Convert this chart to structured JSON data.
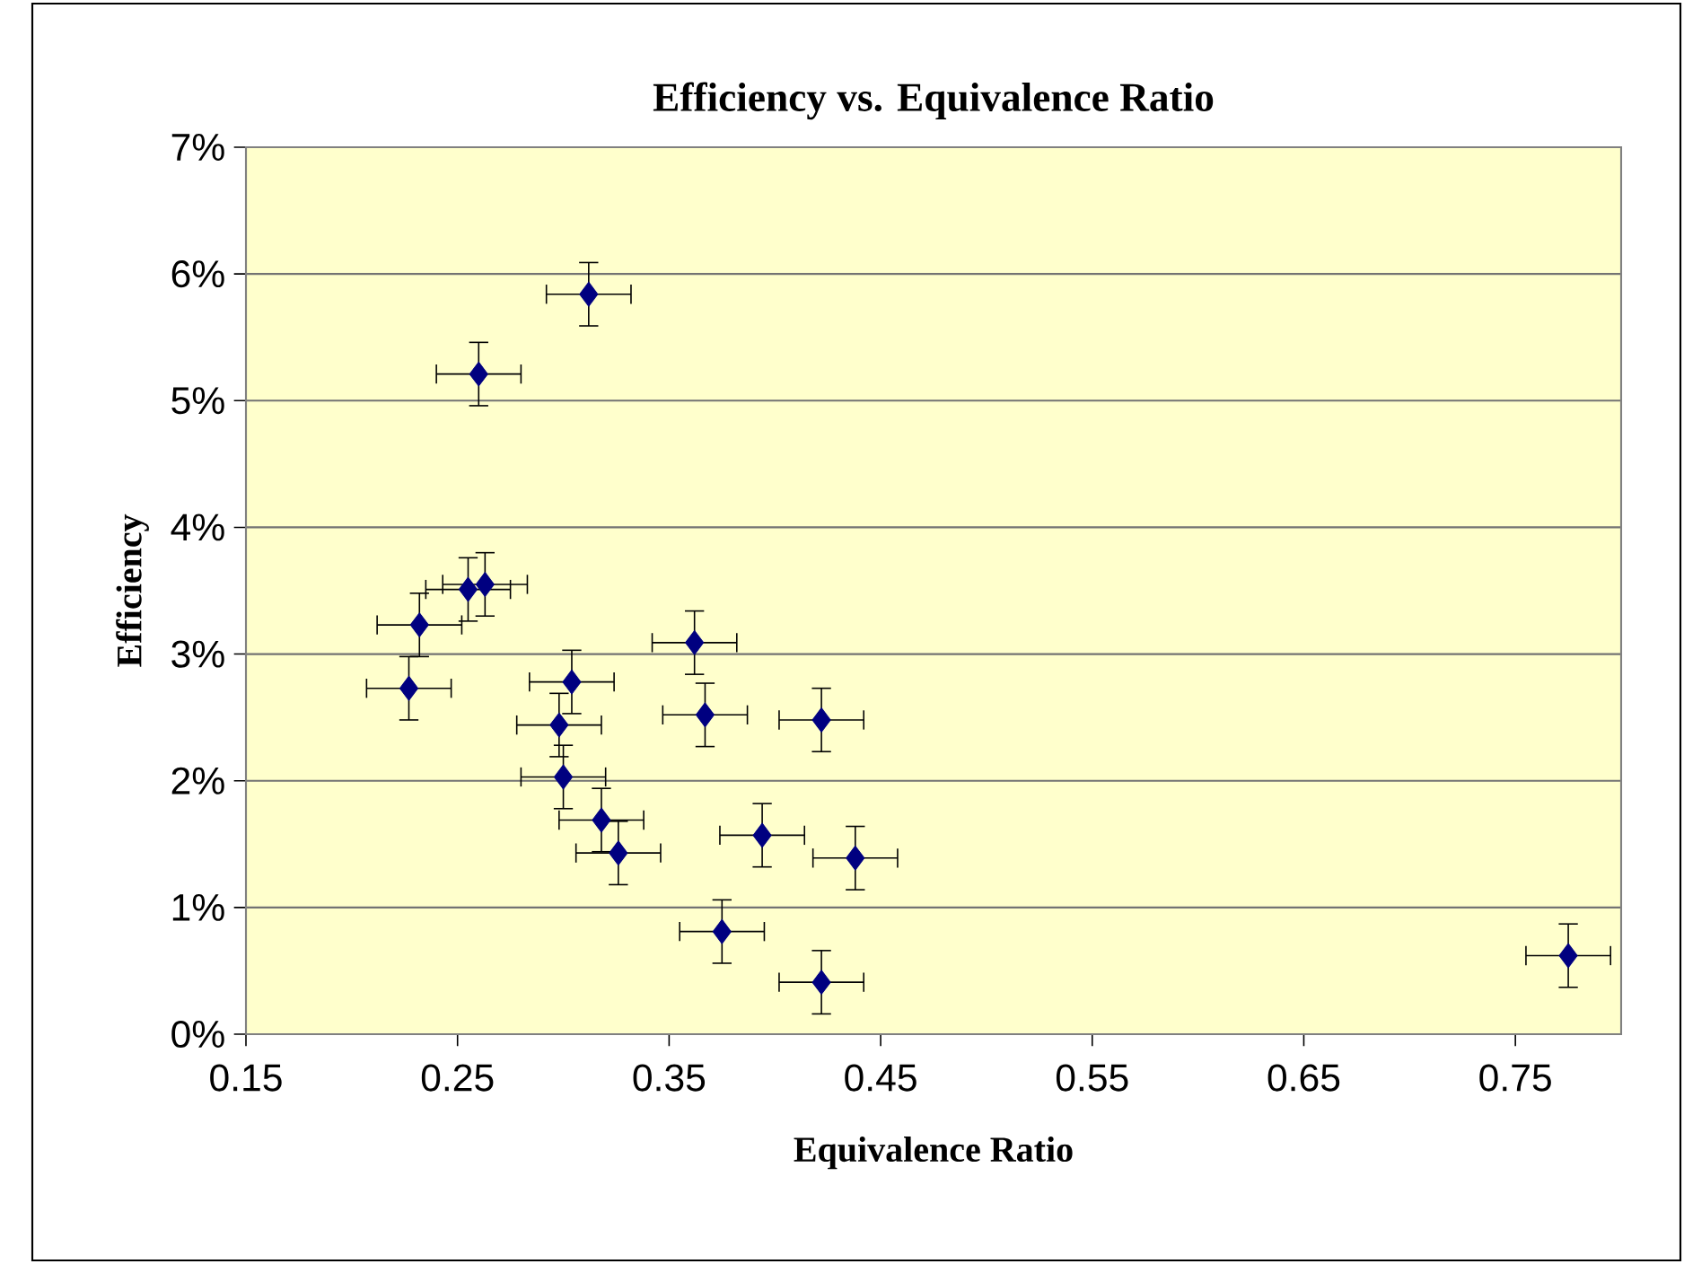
{
  "chart_data": {
    "type": "scatter",
    "title": "Efficiency vs. Equivalence Ratio",
    "xlabel": "Equivalence Ratio",
    "ylabel": "Efficiency",
    "x": [
      0.312,
      0.26,
      0.255,
      0.263,
      0.232,
      0.227,
      0.304,
      0.362,
      0.298,
      0.367,
      0.422,
      0.3,
      0.318,
      0.326,
      0.394,
      0.438,
      0.375,
      0.422,
      0.775
    ],
    "values": [
      5.84,
      5.21,
      3.51,
      3.55,
      3.23,
      2.73,
      2.78,
      3.09,
      2.44,
      2.52,
      2.48,
      2.03,
      1.69,
      1.43,
      1.57,
      1.39,
      0.81,
      0.41,
      0.62
    ],
    "errors": [
      0.25,
      0.25,
      0.25,
      0.25,
      0.25,
      0.25,
      0.25,
      0.25,
      0.25,
      0.25,
      0.25,
      0.25,
      0.25,
      0.25,
      0.25,
      0.25,
      0.25,
      0.25,
      0.25
    ],
    "xerrors": [
      0.02,
      0.02,
      0.02,
      0.02,
      0.02,
      0.02,
      0.02,
      0.02,
      0.02,
      0.02,
      0.02,
      0.02,
      0.02,
      0.02,
      0.02,
      0.02,
      0.02,
      0.02,
      0.02
    ],
    "color": "#000080",
    "marker": "diamond",
    "grid": "y",
    "xlim": [
      0.15,
      0.8
    ],
    "xticks": [
      0.15,
      0.25,
      0.35,
      0.45,
      0.55,
      0.65,
      0.75
    ],
    "ylim": [
      0,
      7
    ],
    "yticks": [
      {
        "value": 0,
        "label": "0%"
      },
      {
        "value": 1,
        "label": "1%"
      },
      {
        "value": 2,
        "label": "2%"
      },
      {
        "value": 3,
        "label": "3%"
      },
      {
        "value": 4,
        "label": "4%"
      },
      {
        "value": 5,
        "label": "5%"
      },
      {
        "value": 6,
        "label": "6%"
      },
      {
        "value": 7,
        "label": "7%"
      }
    ]
  }
}
